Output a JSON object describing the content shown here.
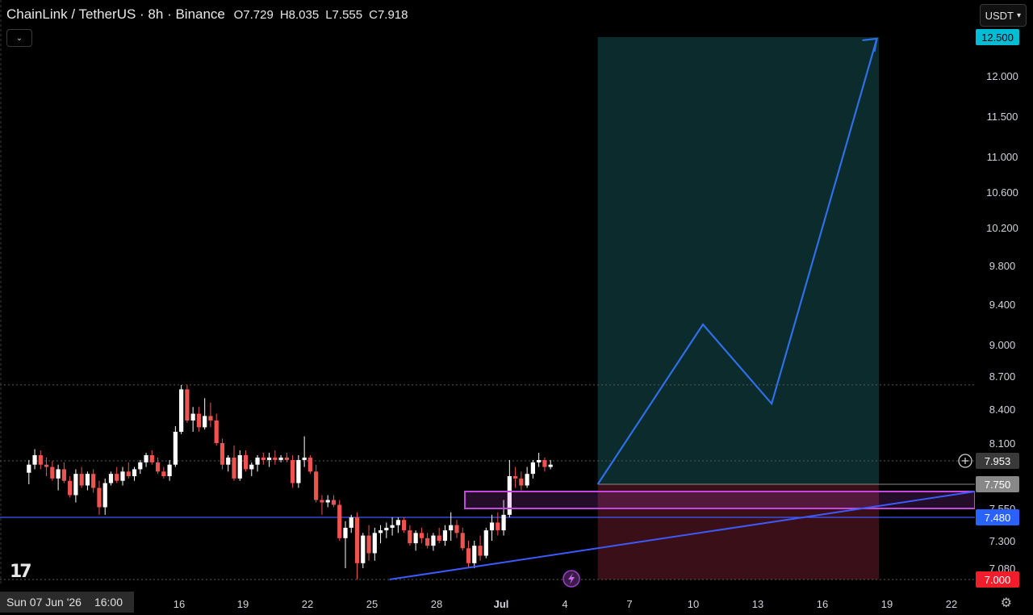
{
  "header": {
    "symbol": "ChainLink / TetherUS · 8h · Binance",
    "open": "O7.729",
    "high": "H8.035",
    "low": "L7.555",
    "close": "C7.918"
  },
  "currency_selector": "USDT",
  "tradingview_logo": "17",
  "crosshair_date": {
    "day": "Sun 07 Jun '26",
    "time": "16:00"
  },
  "colors": {
    "up": "#ffffff",
    "down": "#ef5350",
    "target_zone": "#0b2b2c",
    "stop_zone": "#3a0f17",
    "projection_line": "#2f6fe8",
    "support_line": "#3d5afe",
    "demand_box": "#c447e0",
    "target_badge": "#00bcd4",
    "stop_badge": "#f01d2a",
    "support_badge": "#2962ff",
    "entry_badge": "#888888",
    "current_badge": "#3a3a3a"
  },
  "chart_data": {
    "type": "candlestick",
    "timeframe": "8h",
    "price_axis_ticks": [
      "12.000",
      "11.500",
      "11.000",
      "10.600",
      "10.200",
      "9.800",
      "9.400",
      "9.000",
      "8.700",
      "8.400",
      "8.100",
      "7.550",
      "7.300",
      "7.080"
    ],
    "time_axis_ticks": [
      "16",
      "19",
      "22",
      "25",
      "28",
      "Jul",
      "4",
      "7",
      "10",
      "13",
      "16",
      "19",
      "22"
    ],
    "price_badges": {
      "target": "12.500",
      "current": "7.953",
      "entry": "7.750",
      "support": "7.480",
      "stop": "7.000"
    },
    "dotted_levels": [
      8.62,
      7.953,
      7.0
    ],
    "support_level": 7.48,
    "demand_zone": [
      7.55,
      7.69
    ],
    "rising_trendline": [
      {
        "day": 25.8,
        "price": 7.0
      },
      {
        "day": 36.4,
        "price": 7.69
      }
    ],
    "position": {
      "start_day": 35.5,
      "end_day": 48.6,
      "entry": 7.75,
      "target": 12.5,
      "stop": 7.0
    },
    "projected_path": [
      {
        "day": 35.5,
        "price": 7.75
      },
      {
        "day": 40.4,
        "price": 9.2
      },
      {
        "day": 43.6,
        "price": 8.45
      },
      {
        "day": 48.5,
        "price": 12.48
      }
    ],
    "candles": [
      [
        7.85,
        7.96,
        7.75,
        7.92
      ],
      [
        7.92,
        8.05,
        7.88,
        8.0
      ],
      [
        8.0,
        8.04,
        7.88,
        7.92
      ],
      [
        7.92,
        7.98,
        7.82,
        7.9
      ],
      [
        7.9,
        7.95,
        7.78,
        7.8
      ],
      [
        7.8,
        7.92,
        7.7,
        7.88
      ],
      [
        7.88,
        7.94,
        7.76,
        7.78
      ],
      [
        7.78,
        7.82,
        7.64,
        7.66
      ],
      [
        7.66,
        7.88,
        7.6,
        7.84
      ],
      [
        7.84,
        7.9,
        7.72,
        7.74
      ],
      [
        7.74,
        7.86,
        7.7,
        7.84
      ],
      [
        7.84,
        7.88,
        7.68,
        7.72
      ],
      [
        7.72,
        7.78,
        7.5,
        7.56
      ],
      [
        7.56,
        7.8,
        7.5,
        7.76
      ],
      [
        7.76,
        7.86,
        7.74,
        7.84
      ],
      [
        7.84,
        7.9,
        7.76,
        7.78
      ],
      [
        7.78,
        7.9,
        7.74,
        7.86
      ],
      [
        7.86,
        7.94,
        7.8,
        7.82
      ],
      [
        7.82,
        7.9,
        7.78,
        7.88
      ],
      [
        7.88,
        7.96,
        7.84,
        7.94
      ],
      [
        7.94,
        8.02,
        7.9,
        8.0
      ],
      [
        8.0,
        8.04,
        7.92,
        7.94
      ],
      [
        7.94,
        7.98,
        7.84,
        7.86
      ],
      [
        7.86,
        7.9,
        7.8,
        7.82
      ],
      [
        7.82,
        7.96,
        7.78,
        7.92
      ],
      [
        7.92,
        8.25,
        7.9,
        8.2
      ],
      [
        8.2,
        8.62,
        8.18,
        8.58
      ],
      [
        8.58,
        8.62,
        8.28,
        8.3
      ],
      [
        8.3,
        8.42,
        8.2,
        8.36
      ],
      [
        8.36,
        8.42,
        8.2,
        8.24
      ],
      [
        8.24,
        8.5,
        8.22,
        8.34
      ],
      [
        8.34,
        8.46,
        8.24,
        8.3
      ],
      [
        8.3,
        8.36,
        8.08,
        8.1
      ],
      [
        8.1,
        8.14,
        7.88,
        7.92
      ],
      [
        7.92,
        8.0,
        7.86,
        7.98
      ],
      [
        7.98,
        8.08,
        7.78,
        7.8
      ],
      [
        7.8,
        8.04,
        7.78,
        8.0
      ],
      [
        8.0,
        8.04,
        7.86,
        7.88
      ],
      [
        7.88,
        7.94,
        7.82,
        7.92
      ],
      [
        7.92,
        8.0,
        7.86,
        7.98
      ],
      [
        7.98,
        8.02,
        7.92,
        7.96
      ],
      [
        7.96,
        8.02,
        7.9,
        7.98
      ],
      [
        7.98,
        8.04,
        7.92,
        7.96
      ],
      [
        7.96,
        8.0,
        7.94,
        7.98
      ],
      [
        7.98,
        8.02,
        7.94,
        7.96
      ],
      [
        7.96,
        8.0,
        7.72,
        7.76
      ],
      [
        7.76,
        8.0,
        7.72,
        7.96
      ],
      [
        7.96,
        8.16,
        7.9,
        7.98
      ],
      [
        7.98,
        8.0,
        7.84,
        7.86
      ],
      [
        7.86,
        7.92,
        7.6,
        7.62
      ],
      [
        7.62,
        7.66,
        7.5,
        7.6
      ],
      [
        7.6,
        7.66,
        7.56,
        7.62
      ],
      [
        7.62,
        7.66,
        7.56,
        7.58
      ],
      [
        7.58,
        7.62,
        7.3,
        7.32
      ],
      [
        7.32,
        7.45,
        7.08,
        7.4
      ],
      [
        7.4,
        7.5,
        7.36,
        7.48
      ],
      [
        7.48,
        7.52,
        7.0,
        7.12
      ],
      [
        7.12,
        7.36,
        7.08,
        7.34
      ],
      [
        7.34,
        7.42,
        7.14,
        7.2
      ],
      [
        7.2,
        7.4,
        7.14,
        7.36
      ],
      [
        7.36,
        7.42,
        7.28,
        7.38
      ],
      [
        7.38,
        7.44,
        7.32,
        7.4
      ],
      [
        7.4,
        7.48,
        7.34,
        7.42
      ],
      [
        7.42,
        7.48,
        7.36,
        7.46
      ],
      [
        7.46,
        7.48,
        7.36,
        7.38
      ],
      [
        7.38,
        7.42,
        7.26,
        7.28
      ],
      [
        7.28,
        7.38,
        7.22,
        7.36
      ],
      [
        7.36,
        7.4,
        7.28,
        7.32
      ],
      [
        7.32,
        7.36,
        7.24,
        7.26
      ],
      [
        7.26,
        7.36,
        7.22,
        7.34
      ],
      [
        7.34,
        7.4,
        7.28,
        7.3
      ],
      [
        7.3,
        7.42,
        7.26,
        7.38
      ],
      [
        7.38,
        7.52,
        7.3,
        7.42
      ],
      [
        7.42,
        7.46,
        7.32,
        7.36
      ],
      [
        7.36,
        7.4,
        7.22,
        7.24
      ],
      [
        7.24,
        7.3,
        7.08,
        7.12
      ],
      [
        7.12,
        7.3,
        7.08,
        7.26
      ],
      [
        7.26,
        7.34,
        7.14,
        7.18
      ],
      [
        7.18,
        7.4,
        7.16,
        7.38
      ],
      [
        7.38,
        7.5,
        7.3,
        7.44
      ],
      [
        7.44,
        7.52,
        7.34,
        7.38
      ],
      [
        7.38,
        7.62,
        7.34,
        7.5
      ],
      [
        7.5,
        7.96,
        7.48,
        7.82
      ],
      [
        7.82,
        7.9,
        7.72,
        7.8
      ],
      [
        7.8,
        7.86,
        7.7,
        7.74
      ],
      [
        7.74,
        7.9,
        7.72,
        7.84
      ],
      [
        7.84,
        7.96,
        7.8,
        7.94
      ],
      [
        7.94,
        8.02,
        7.9,
        7.96
      ],
      [
        7.96,
        7.98,
        7.86,
        7.9
      ],
      [
        7.9,
        7.96,
        7.88,
        7.92
      ]
    ]
  }
}
